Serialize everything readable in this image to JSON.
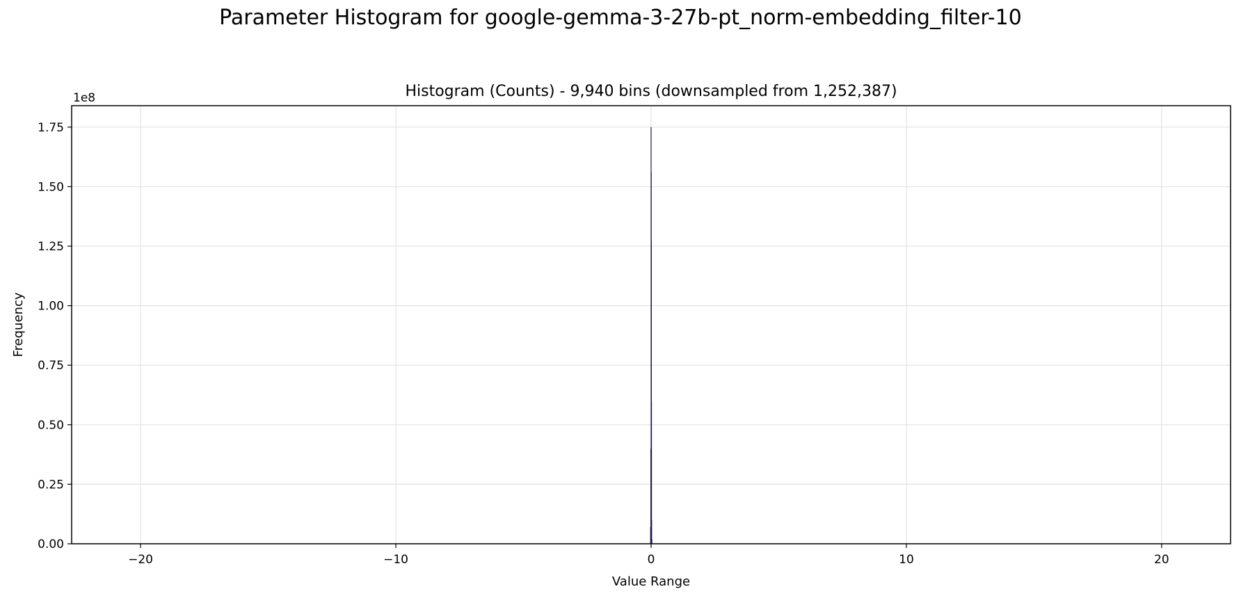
{
  "figure": {
    "suptitle": "Parameter Histogram for google-gemma-3-27b-pt_norm-embedding_filter-10"
  },
  "chart_data": {
    "type": "bar",
    "title": "Histogram (Counts) - 9,940 bins (downsampled from 1,252,387)",
    "xlabel": "Value Range",
    "ylabel": "Frequency",
    "y_offset_text": "1e8",
    "xlim": [
      -22.7,
      22.7
    ],
    "ylim": [
      0,
      1.84
    ],
    "y_scale_multiplier": 100000000,
    "x_ticks": [
      -20,
      -10,
      0,
      10,
      20
    ],
    "x_tick_labels": [
      "−20",
      "−10",
      "0",
      "10",
      "20"
    ],
    "y_ticks": [
      0,
      0.25,
      0.5,
      0.75,
      1.0,
      1.25,
      1.5,
      1.75
    ],
    "y_tick_labels": [
      "0.00",
      "0.25",
      "0.50",
      "0.75",
      "1.00",
      "1.25",
      "1.50",
      "1.75"
    ],
    "grid": true,
    "bar_color": "#1f1a4e",
    "series": [
      {
        "x": [
          -0.02,
          -0.01,
          0.0,
          0.005,
          0.01,
          0.015,
          0.02,
          0.03
        ],
        "values": [
          0.07,
          0.4,
          1.75,
          1.56,
          1.27,
          0.6,
          0.1,
          0.02
        ]
      }
    ]
  }
}
